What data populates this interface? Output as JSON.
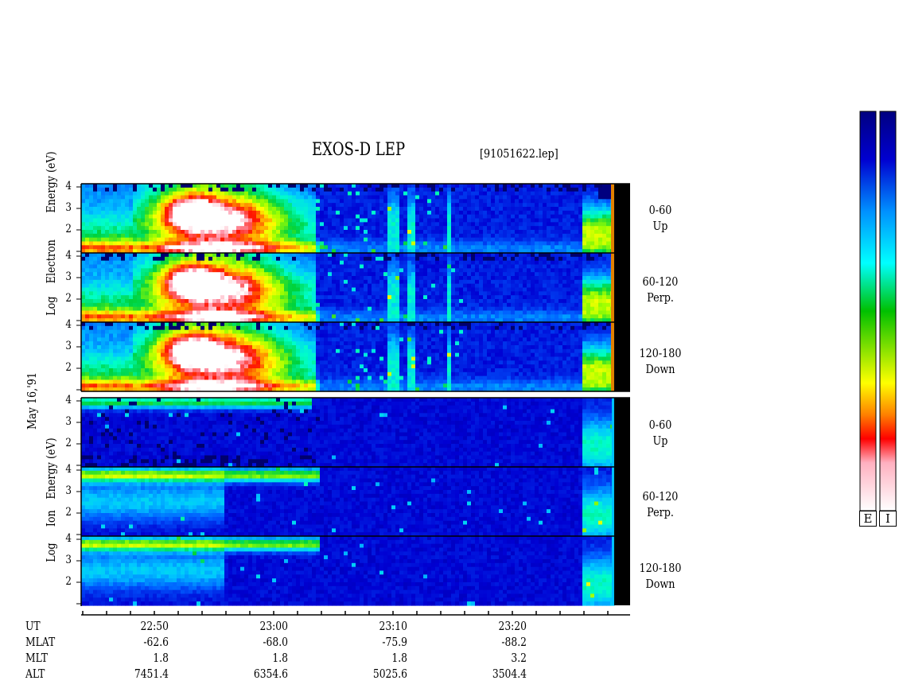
{
  "title": "EXOS-D LEP",
  "file_name": "[91051622.lep]",
  "date_label": "May 16,'91",
  "electron_axis_label": [
    "Log",
    "Electron",
    "Energy",
    "(eV)"
  ],
  "ion_axis_label": [
    "Log",
    "Ion",
    "Energy",
    "(eV)"
  ],
  "pitch_angle_labels": [
    {
      "range": "0-60",
      "dir": "Up"
    },
    {
      "range": "60-120",
      "dir": "Perp."
    },
    {
      "range": "120-180",
      "dir": "Down"
    }
  ],
  "colorbar_labels": [
    "E",
    "I"
  ],
  "ephemeris": {
    "row_labels": [
      "UT",
      "MLAT",
      "MLT",
      "ALT"
    ],
    "columns": [
      {
        "UT": "22:50",
        "MLAT": "-62.6",
        "MLT": "1.8",
        "ALT": "7451.4"
      },
      {
        "UT": "23:00",
        "MLAT": "-68.0",
        "MLT": "1.8",
        "ALT": "6354.6"
      },
      {
        "UT": "23:10",
        "MLAT": "-75.9",
        "MLT": "1.8",
        "ALT": "5025.6"
      },
      {
        "UT": "23:20",
        "MLAT": "-88.2",
        "MLT": "3.2",
        "ALT": "3504.4"
      }
    ]
  },
  "chart_data": {
    "type": "heatmap",
    "x_axis": {
      "label": "UT",
      "ticks": [
        "22:50",
        "23:00",
        "23:10",
        "23:20"
      ]
    },
    "y_axis": {
      "scale": "log",
      "label": "Log Energy (eV)",
      "ticks": [
        "1",
        "2",
        "3",
        "4"
      ],
      "ylim": [
        1,
        4
      ]
    },
    "panels": [
      {
        "species": "Electron",
        "pitch_angle": "0-60",
        "direction": "Up"
      },
      {
        "species": "Electron",
        "pitch_angle": "60-120",
        "direction": "Perp."
      },
      {
        "species": "Electron",
        "pitch_angle": "120-180",
        "direction": "Down"
      },
      {
        "species": "Ion",
        "pitch_angle": "0-60",
        "direction": "Up"
      },
      {
        "species": "Ion",
        "pitch_angle": "60-120",
        "direction": "Perp."
      },
      {
        "species": "Ion",
        "pitch_angle": "120-180",
        "direction": "Down"
      }
    ],
    "colorscale": [
      "#ffffff",
      "#ff9aa8",
      "#ff0000",
      "#ff8000",
      "#ffff00",
      "#00c000",
      "#00ffff",
      "#0080ff",
      "#0000c0",
      "#000080"
    ]
  }
}
